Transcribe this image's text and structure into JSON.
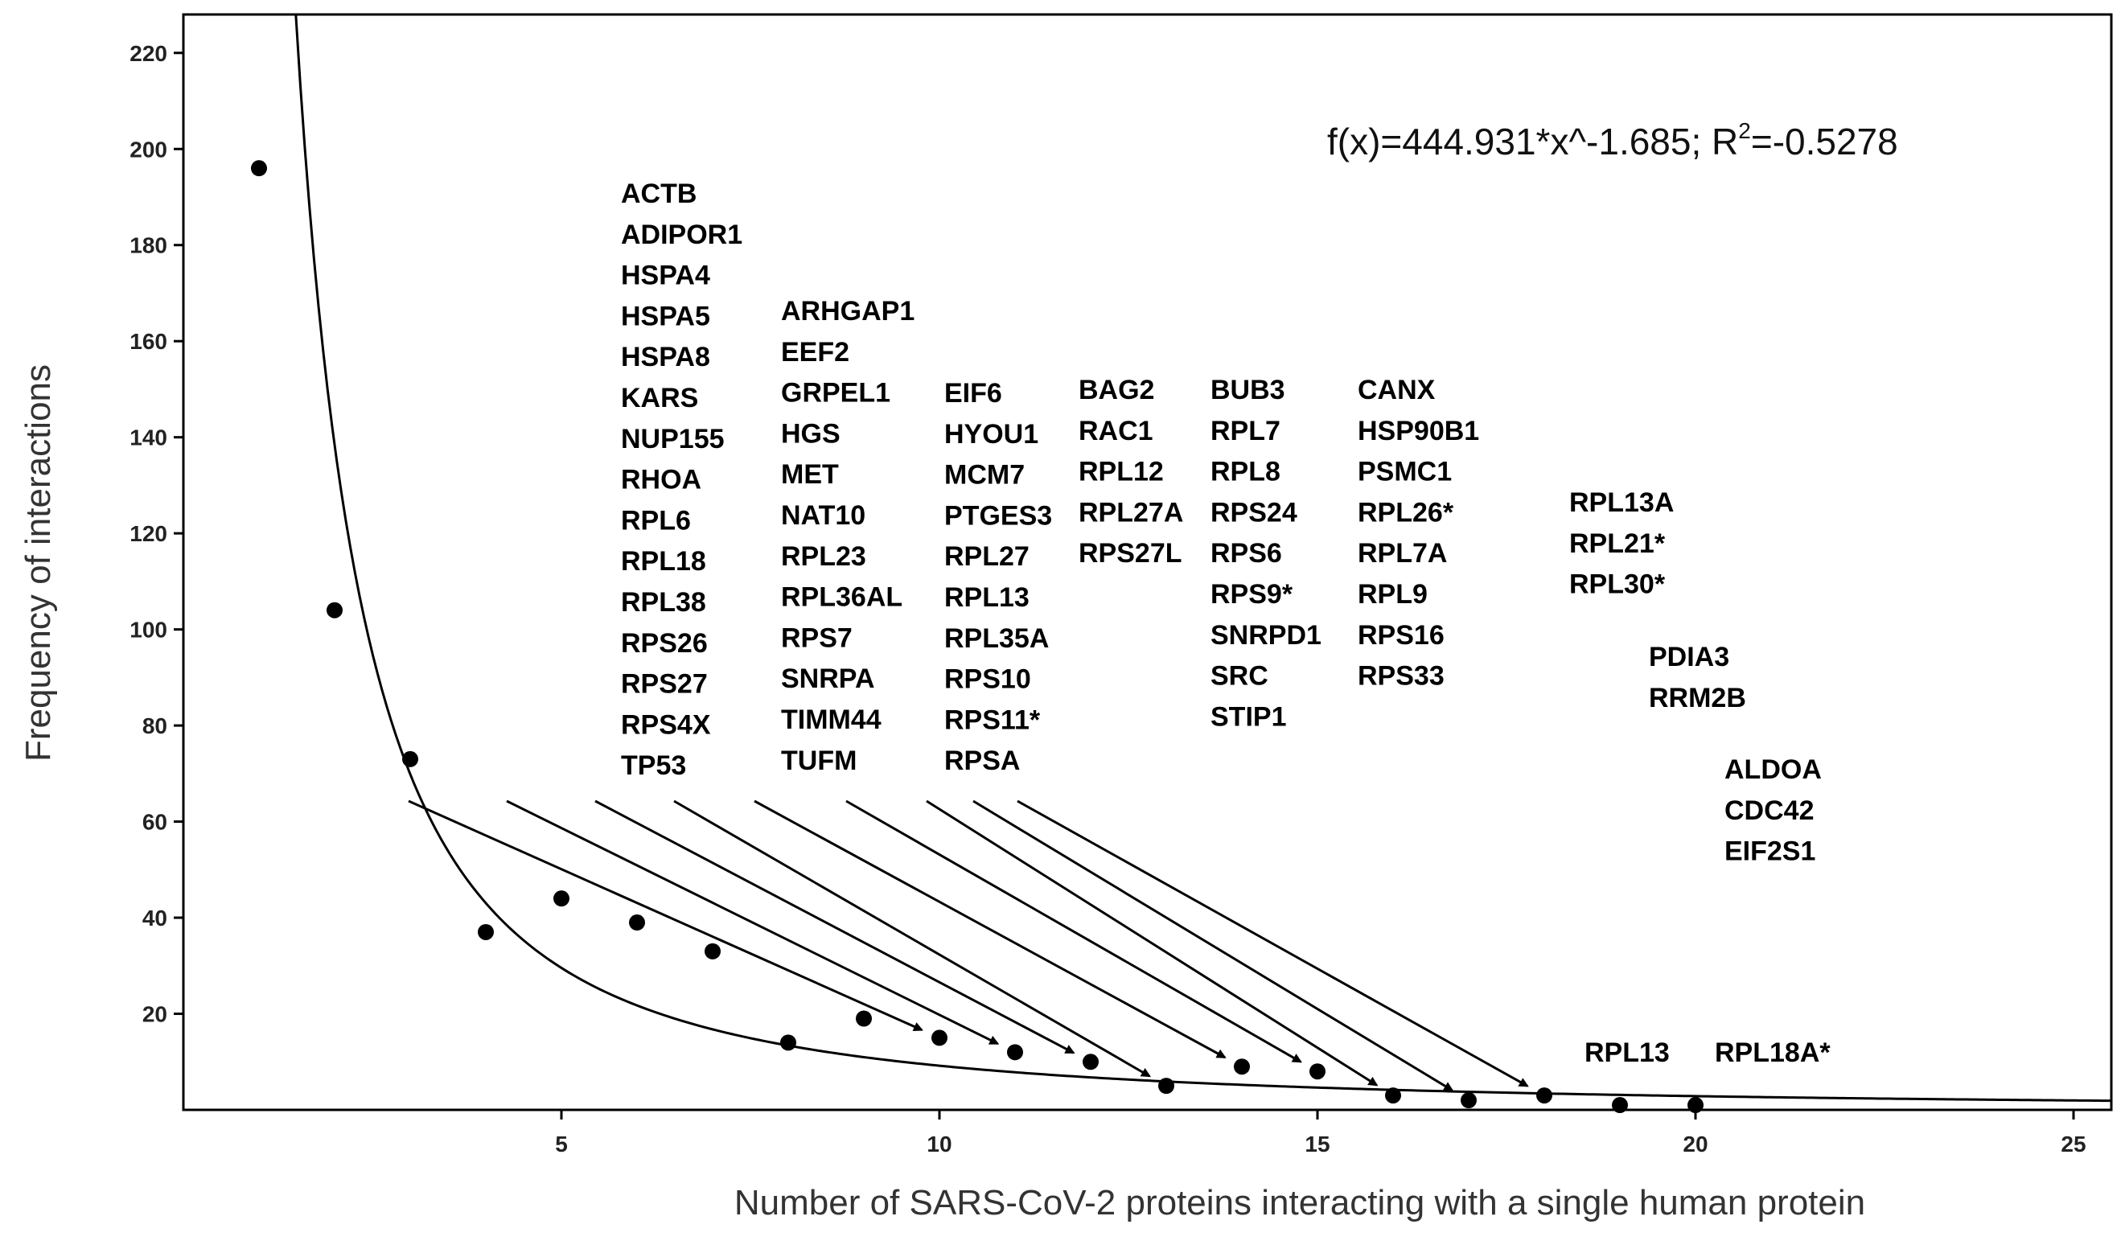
{
  "chart_data": {
    "type": "scatter",
    "xlabel": "Number of SARS-CoV-2 proteins interacting with a single human protein",
    "ylabel": "Frequency of interactions",
    "xlim": [
      0,
      25.5
    ],
    "ylim": [
      0,
      228
    ],
    "x_ticks": [
      5,
      10,
      15,
      20,
      25
    ],
    "y_ticks": [
      20,
      40,
      60,
      80,
      100,
      120,
      140,
      160,
      180,
      200,
      220
    ],
    "grid": false,
    "points": [
      {
        "x": 1,
        "y": 196
      },
      {
        "x": 2,
        "y": 104
      },
      {
        "x": 3,
        "y": 73
      },
      {
        "x": 4,
        "y": 37
      },
      {
        "x": 5,
        "y": 44
      },
      {
        "x": 6,
        "y": 39
      },
      {
        "x": 7,
        "y": 33
      },
      {
        "x": 8,
        "y": 14
      },
      {
        "x": 9,
        "y": 19
      },
      {
        "x": 10,
        "y": 15
      },
      {
        "x": 11,
        "y": 12
      },
      {
        "x": 12,
        "y": 10
      },
      {
        "x": 13,
        "y": 5
      },
      {
        "x": 14,
        "y": 9
      },
      {
        "x": 15,
        "y": 8
      },
      {
        "x": 16,
        "y": 3
      },
      {
        "x": 17,
        "y": 2
      },
      {
        "x": 18,
        "y": 3
      },
      {
        "x": 19,
        "y": 1
      },
      {
        "x": 20,
        "y": 1
      }
    ],
    "fit": {
      "a": 444.931,
      "b": -1.685,
      "label_main": "f(x)=444.931*x^-1.685; R",
      "label_sup": "2",
      "label_tail": "=-0.5278"
    },
    "annotations": [
      {
        "x": 10,
        "genes": [
          "ACTB",
          "ADIPOR1",
          "HSPA4",
          "HSPA5",
          "HSPA8",
          "KARS",
          "NUP155",
          "RHOA",
          "RPL6",
          "RPL18",
          "RPL38",
          "RPS26",
          "RPS27",
          "RPS4X",
          "TP53"
        ]
      },
      {
        "x": 11,
        "genes": [
          "ARHGAP1",
          "EEF2",
          "GRPEL1",
          "HGS",
          "MET",
          "NAT10",
          "RPL23",
          "RPL36AL",
          "RPS7",
          "SNRPA",
          "TIMM44",
          "TUFM"
        ]
      },
      {
        "x": 12,
        "genes": [
          "EIF6",
          "HYOU1",
          "MCM7",
          "PTGES3",
          "RPL27",
          "RPL13",
          "RPL35A",
          "RPS10",
          "RPS11*",
          "RPSA"
        ]
      },
      {
        "x": 13,
        "genes": [
          "BAG2",
          "RAC1",
          "RPL12",
          "RPL27A",
          "RPS27L"
        ]
      },
      {
        "x": 14,
        "genes": [
          "BUB3",
          "RPL7",
          "RPL8",
          "RPS24",
          "RPS6",
          "RPS9*",
          "SNRPD1",
          "SRC",
          "STIP1"
        ]
      },
      {
        "x": 15,
        "genes": [
          "CANX",
          "HSP90B1",
          "PSMC1",
          "RPL26*",
          "RPL7A",
          "RPL9",
          "RPS16",
          "RPS33"
        ]
      },
      {
        "x": 16,
        "genes": [
          "RPL13A",
          "RPL21*",
          "RPL30*"
        ]
      },
      {
        "x": 17,
        "genes": [
          "PDIA3",
          "RRM2B"
        ]
      },
      {
        "x": 18,
        "genes": [
          "ALDOA",
          "CDC42",
          "EIF2S1"
        ]
      },
      {
        "x": 19,
        "genes": [
          "RPL13"
        ]
      },
      {
        "x": 20,
        "genes": [
          "RPL18A*"
        ]
      }
    ]
  }
}
